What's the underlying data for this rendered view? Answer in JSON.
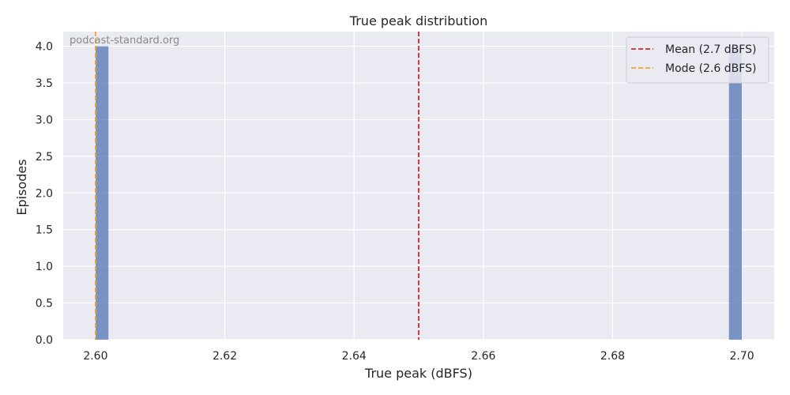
{
  "chart_data": {
    "type": "bar",
    "title": "True peak distribution",
    "xlabel": "True peak (dBFS)",
    "ylabel": "Episodes",
    "watermark": "podcast-standard.org",
    "xlim": [
      2.595,
      2.705
    ],
    "ylim": [
      0,
      4.2
    ],
    "xticks": [
      "2.60",
      "2.62",
      "2.64",
      "2.66",
      "2.68",
      "2.70"
    ],
    "yticks": [
      "0.0",
      "0.5",
      "1.0",
      "1.5",
      "2.0",
      "2.5",
      "3.0",
      "3.5",
      "4.0"
    ],
    "bins": [
      {
        "x0": 2.6,
        "x1": 2.602,
        "count": 4
      },
      {
        "x0": 2.698,
        "x1": 2.7,
        "count": 4
      }
    ],
    "reference_lines": [
      {
        "x": 2.65,
        "label": "Mean (2.7 dBFS)",
        "color": "#d62728"
      },
      {
        "x": 2.6,
        "label": "Mode (2.6 dBFS)",
        "color": "#f5a623"
      }
    ],
    "bar_color": "#4c72b0",
    "grid": true,
    "legend_position": "top-right"
  }
}
